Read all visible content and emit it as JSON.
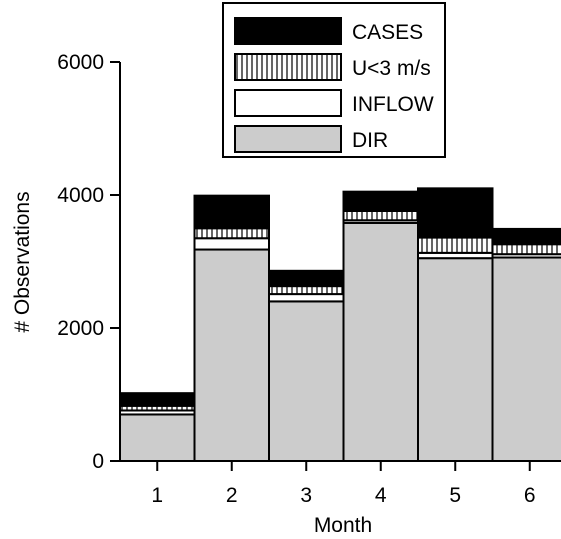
{
  "chart_data": {
    "type": "bar",
    "stacked": true,
    "xlabel": "Month",
    "ylabel": "# Observations",
    "ylim": [
      0,
      6000
    ],
    "yticks": [
      0,
      2000,
      4000,
      6000
    ],
    "categories": [
      "1",
      "2",
      "3",
      "4",
      "5",
      "6"
    ],
    "legend_position": "top-right",
    "series": [
      {
        "name": "DIR",
        "fill": "#cccccc",
        "pattern": "solid",
        "values": [
          700,
          3180,
          2400,
          3580,
          3050,
          3060
        ]
      },
      {
        "name": "INFLOW",
        "fill": "#ffffff",
        "pattern": "solid",
        "values": [
          60,
          170,
          110,
          40,
          80,
          50
        ]
      },
      {
        "name": "U<3 m/s",
        "fill": "#ffffff",
        "pattern": "vertical-hatch",
        "values": [
          70,
          150,
          120,
          140,
          230,
          150
        ]
      },
      {
        "name": "CASES",
        "fill": "#000000",
        "pattern": "solid",
        "values": [
          190,
          490,
          230,
          290,
          740,
          230
        ]
      }
    ],
    "legend_order": [
      "CASES",
      "U<3 m/s",
      "INFLOW",
      "DIR"
    ]
  }
}
